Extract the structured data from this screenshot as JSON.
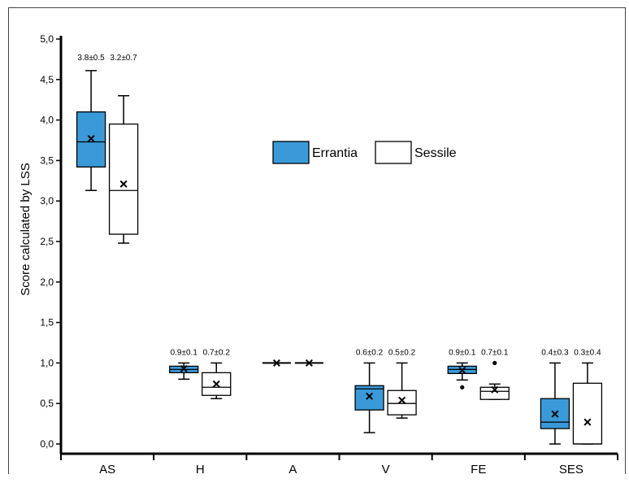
{
  "chart_data": {
    "type": "box",
    "ylabel": "Score  calculated  by  LSS",
    "ylim": [
      0,
      5
    ],
    "y_ticks": [
      "0,0",
      "0,5",
      "1,0",
      "1,5",
      "2,0",
      "2,5",
      "3,0",
      "3,5",
      "4,0",
      "4,5",
      "5,0"
    ],
    "categories": [
      "AS",
      "H",
      "A",
      "V",
      "FE",
      "SES"
    ],
    "legend": {
      "placement": "center-right"
    },
    "colors": {
      "errantia": "#3a9ad9",
      "sessile": "#ffffff",
      "stroke": "#000000"
    },
    "series": [
      {
        "name": "Errantia",
        "boxes": [
          {
            "category": "AS",
            "min": 3.13,
            "q1": 3.42,
            "median": 3.73,
            "q3": 4.1,
            "max": 4.61,
            "mean": 3.77,
            "label": "3.8±0.5"
          },
          {
            "category": "H",
            "min": 0.8,
            "q1": 0.88,
            "median": 0.92,
            "q3": 0.96,
            "max": 1.0,
            "mean": 0.93,
            "label": "0.9±0.1"
          },
          {
            "category": "A",
            "min": 1.0,
            "q1": 1.0,
            "median": 1.0,
            "q3": 1.0,
            "max": 1.0,
            "mean": 1.0,
            "label": ""
          },
          {
            "category": "V",
            "min": 0.14,
            "q1": 0.42,
            "median": 0.68,
            "q3": 0.72,
            "max": 1.0,
            "mean": 0.59,
            "label": "0.6±0.2"
          },
          {
            "category": "FE",
            "min": 0.79,
            "q1": 0.87,
            "median": 0.92,
            "q3": 0.96,
            "max": 1.0,
            "mean": 0.91,
            "outliers": [
              0.7
            ],
            "label": "0.9±0.1"
          },
          {
            "category": "SES",
            "min": 0.0,
            "q1": 0.19,
            "median": 0.27,
            "q3": 0.56,
            "max": 1.0,
            "mean": 0.37,
            "label": "0.4±0.3"
          }
        ]
      },
      {
        "name": "Sessile",
        "boxes": [
          {
            "category": "AS",
            "min": 2.48,
            "q1": 2.59,
            "median": 3.13,
            "q3": 3.95,
            "max": 4.3,
            "mean": 3.21,
            "label": "3.2±0.7"
          },
          {
            "category": "H",
            "min": 0.56,
            "q1": 0.6,
            "median": 0.7,
            "q3": 0.88,
            "max": 1.0,
            "mean": 0.74,
            "label": "0.7±0.2"
          },
          {
            "category": "A",
            "min": 1.0,
            "q1": 1.0,
            "median": 1.0,
            "q3": 1.0,
            "max": 1.0,
            "mean": 1.0,
            "label": ""
          },
          {
            "category": "V",
            "min": 0.32,
            "q1": 0.36,
            "median": 0.5,
            "q3": 0.66,
            "max": 1.0,
            "mean": 0.54,
            "label": "0.5±0.2"
          },
          {
            "category": "FE",
            "min": 0.55,
            "q1": 0.55,
            "median": 0.65,
            "q3": 0.7,
            "max": 0.74,
            "mean": 0.67,
            "outliers": [
              1.0
            ],
            "label": "0.7±0.1"
          },
          {
            "category": "SES",
            "min": 0.0,
            "q1": 0.0,
            "median": 0.0,
            "q3": 0.75,
            "max": 1.0,
            "mean": 0.27,
            "label": "0.3±0.4"
          }
        ]
      }
    ]
  }
}
